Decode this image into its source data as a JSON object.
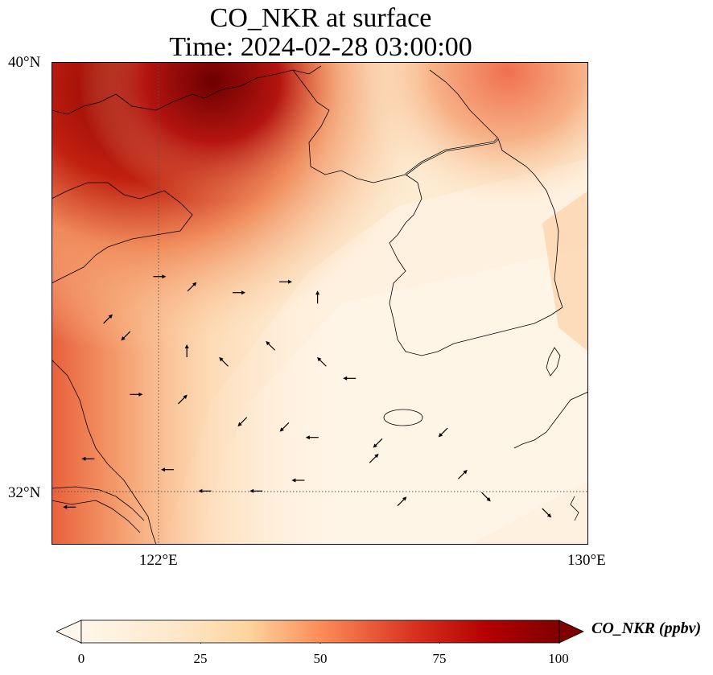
{
  "title": {
    "line1": "CO_NKR at surface",
    "line2": "Time: 2024-02-28 03:00:00"
  },
  "map": {
    "lon_range": [
      118.5,
      130
    ],
    "lat_range": [
      31,
      40
    ],
    "lon_ticks": [
      {
        "value": 122,
        "label": "122°E"
      },
      {
        "value": 130,
        "label": "130°E"
      }
    ],
    "lat_ticks": [
      {
        "value": 40,
        "label": "40°N"
      },
      {
        "value": 32,
        "label": "32°N"
      }
    ],
    "gridlines": "dotted",
    "field_colormap": "OrRd",
    "coastline_color": "#000000"
  },
  "colorbar": {
    "label": "CO_NKR (ppbv)",
    "min": 0,
    "max": 100,
    "extend": "both",
    "ticks": [
      {
        "value": 0,
        "label": "0"
      },
      {
        "value": 25,
        "label": "25"
      },
      {
        "value": 50,
        "label": "50"
      },
      {
        "value": 75,
        "label": "75"
      },
      {
        "value": 100,
        "label": "100"
      }
    ],
    "colors": [
      "#fff7ec",
      "#fdd49e",
      "#fc8d59",
      "#d7301f",
      "#b30000",
      "#7f0000"
    ]
  },
  "wind_vectors": [
    {
      "lon": 120.8,
      "lat": 36.0,
      "dir": "E"
    },
    {
      "lon": 121.5,
      "lat": 35.8,
      "dir": "NE"
    },
    {
      "lon": 122.5,
      "lat": 35.7,
      "dir": "E"
    },
    {
      "lon": 123.5,
      "lat": 35.9,
      "dir": "E"
    },
    {
      "lon": 124.2,
      "lat": 35.6,
      "dir": "N"
    },
    {
      "lon": 119.7,
      "lat": 35.2,
      "dir": "NE"
    },
    {
      "lon": 120.1,
      "lat": 34.9,
      "dir": "SW"
    },
    {
      "lon": 121.4,
      "lat": 34.6,
      "dir": "N"
    },
    {
      "lon": 122.2,
      "lat": 34.4,
      "dir": "NW"
    },
    {
      "lon": 123.2,
      "lat": 34.7,
      "dir": "NW"
    },
    {
      "lon": 124.3,
      "lat": 34.4,
      "dir": "NW"
    },
    {
      "lon": 124.9,
      "lat": 34.1,
      "dir": "W"
    },
    {
      "lon": 120.3,
      "lat": 33.8,
      "dir": "E"
    },
    {
      "lon": 121.3,
      "lat": 33.7,
      "dir": "NE"
    },
    {
      "lon": 122.6,
      "lat": 33.3,
      "dir": "SW"
    },
    {
      "lon": 123.5,
      "lat": 33.2,
      "dir": "SW"
    },
    {
      "lon": 124.1,
      "lat": 33.0,
      "dir": "W"
    },
    {
      "lon": 125.5,
      "lat": 32.9,
      "dir": "SW"
    },
    {
      "lon": 126.9,
      "lat": 33.1,
      "dir": "SW"
    },
    {
      "lon": 121.0,
      "lat": 32.4,
      "dir": "W"
    },
    {
      "lon": 121.8,
      "lat": 32.0,
      "dir": "W"
    },
    {
      "lon": 122.9,
      "lat": 32.0,
      "dir": "W"
    },
    {
      "lon": 123.8,
      "lat": 32.2,
      "dir": "W"
    },
    {
      "lon": 125.4,
      "lat": 32.6,
      "dir": "NE"
    },
    {
      "lon": 126.0,
      "lat": 31.8,
      "dir": "NE"
    },
    {
      "lon": 127.3,
      "lat": 32.3,
      "dir": "NE"
    },
    {
      "lon": 127.8,
      "lat": 31.9,
      "dir": "SE"
    },
    {
      "lon": 129.1,
      "lat": 31.6,
      "dir": "SE"
    },
    {
      "lon": 120.7,
      "lat": 30.6,
      "dir": "W"
    },
    {
      "lon": 121.4,
      "lat": 30.7,
      "dir": "W"
    },
    {
      "lon": 122.1,
      "lat": 30.5,
      "dir": "W"
    },
    {
      "lon": 123.4,
      "lat": 30.9,
      "dir": "W"
    },
    {
      "lon": 124.7,
      "lat": 30.6,
      "dir": "W"
    },
    {
      "lon": 125.8,
      "lat": 30.4,
      "dir": "NE"
    },
    {
      "lon": 126.9,
      "lat": 30.1,
      "dir": "NE"
    },
    {
      "lon": 127.8,
      "lat": 30.2,
      "dir": "NE"
    },
    {
      "lon": 129.0,
      "lat": 29.8,
      "dir": "SE"
    },
    {
      "lon": 119.3,
      "lat": 32.6,
      "dir": "W"
    },
    {
      "lon": 118.9,
      "lat": 31.7,
      "dir": "W"
    }
  ]
}
